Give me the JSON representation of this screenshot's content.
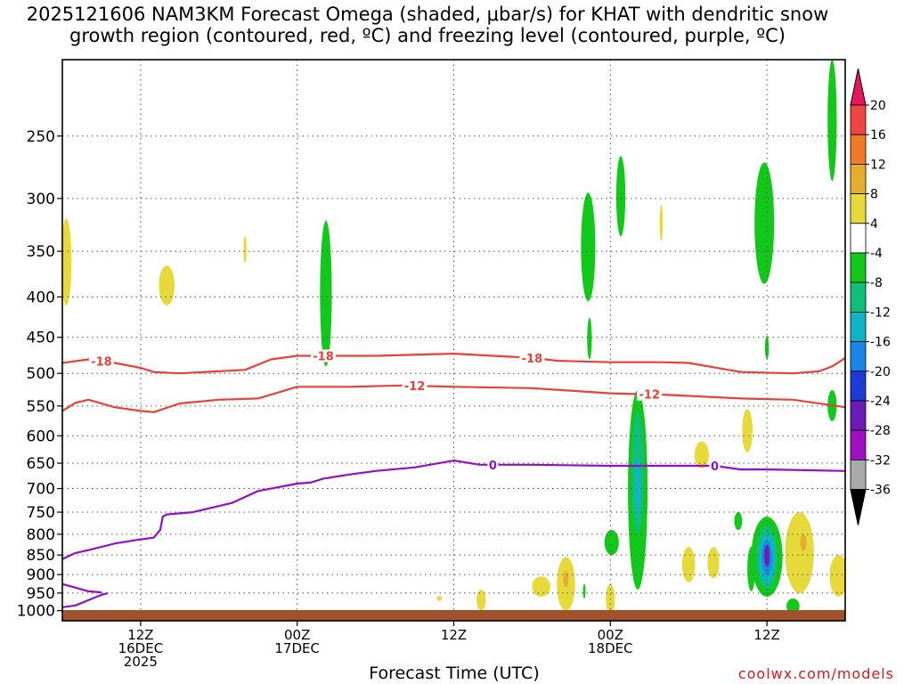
{
  "title_line1": "2025121606 NAM3KM Forecast Omega (shaded, μbar/s) for KHAT with dendritic snow",
  "title_line2": "growth region (contoured, red, ºC) and freezing level (contoured, purple, ºC)",
  "credit": "coolwx.com/models",
  "chart_data": {
    "type": "time-height cross-section",
    "xlabel": "Forecast Time (UTC)",
    "ylabel": "",
    "x_range_hours": [
      6,
      66
    ],
    "y_range_hPa": [
      200,
      1030
    ],
    "y_scale": "log-pressure",
    "grid": "dotted",
    "y_ticks": [
      250,
      300,
      350,
      400,
      450,
      500,
      550,
      600,
      650,
      700,
      750,
      800,
      850,
      900,
      950,
      1000
    ],
    "x_ticks": [
      {
        "hour": 12,
        "label1": "12Z",
        "label2": "16DEC",
        "label3": "2025"
      },
      {
        "hour": 24,
        "label1": "00Z",
        "label2": "17DEC",
        "label3": ""
      },
      {
        "hour": 36,
        "label1": "12Z",
        "label2": "",
        "label3": ""
      },
      {
        "hour": 48,
        "label1": "00Z",
        "label2": "18DEC",
        "label3": ""
      },
      {
        "hour": 60,
        "label1": "12Z",
        "label2": "",
        "label3": ""
      }
    ],
    "colorbar": {
      "labels": [
        "20",
        "16",
        "12",
        "8",
        "4",
        "-4",
        "-8",
        "-12",
        "-16",
        "-20",
        "-24",
        "-28",
        "-32",
        "-36"
      ],
      "colors": [
        "#e8175d",
        "#f04545",
        "#ee7a2a",
        "#e6ad2e",
        "#e8d93a",
        "#ffffff",
        "#12c81a",
        "#10c07a",
        "#10b4c8",
        "#1a86e8",
        "#1c3ad6",
        "#6a1ab8",
        "#a010c0",
        "#aaaaaa",
        "#000000"
      ]
    },
    "contour_series": [
      {
        "label": "-18",
        "color": "#e8403a",
        "points": [
          [
            6,
            485
          ],
          [
            8,
            480
          ],
          [
            10,
            485
          ],
          [
            12,
            492
          ],
          [
            13,
            498
          ],
          [
            15,
            500
          ],
          [
            18,
            497
          ],
          [
            20,
            495
          ],
          [
            22,
            480
          ],
          [
            24,
            475
          ],
          [
            28,
            475
          ],
          [
            30,
            475
          ],
          [
            36,
            472
          ],
          [
            42,
            478
          ],
          [
            44,
            482
          ],
          [
            48,
            484
          ],
          [
            52,
            484
          ],
          [
            54,
            485
          ],
          [
            58,
            498
          ],
          [
            62,
            500
          ],
          [
            64,
            497
          ],
          [
            65,
            490
          ],
          [
            66,
            478
          ]
        ],
        "labels_at": [
          9,
          26,
          42
        ]
      },
      {
        "label": "-12",
        "color": "#e8403a",
        "points": [
          [
            6,
            558
          ],
          [
            7,
            545
          ],
          [
            8,
            540
          ],
          [
            10,
            552
          ],
          [
            12,
            558
          ],
          [
            13,
            560
          ],
          [
            15,
            546
          ],
          [
            18,
            540
          ],
          [
            21,
            538
          ],
          [
            24,
            520
          ],
          [
            28,
            520
          ],
          [
            32,
            518
          ],
          [
            36,
            520
          ],
          [
            42,
            522
          ],
          [
            48,
            530
          ],
          [
            52,
            532
          ],
          [
            54,
            534
          ],
          [
            58,
            538
          ],
          [
            62,
            540
          ],
          [
            66,
            552
          ]
        ],
        "labels_at": [
          33,
          51
        ]
      },
      {
        "label": "0",
        "color": "#9010c8",
        "points": [
          [
            6,
            860
          ],
          [
            7,
            845
          ],
          [
            8,
            838
          ],
          [
            10,
            822
          ],
          [
            12,
            812
          ],
          [
            13,
            808
          ],
          [
            13.5,
            790
          ],
          [
            13.7,
            760
          ],
          [
            14,
            755
          ],
          [
            16,
            750
          ],
          [
            19,
            730
          ],
          [
            21,
            705
          ],
          [
            24,
            690
          ],
          [
            25,
            688
          ],
          [
            26,
            680
          ],
          [
            28,
            672
          ],
          [
            30,
            665
          ],
          [
            33,
            658
          ],
          [
            36,
            645
          ],
          [
            38,
            653
          ],
          [
            42,
            653
          ],
          [
            48,
            655
          ],
          [
            52,
            655
          ],
          [
            56,
            655
          ],
          [
            58,
            662
          ],
          [
            60,
            662
          ],
          [
            66,
            665
          ]
        ],
        "labels_at": [
          39,
          56
        ]
      },
      {
        "label": "",
        "color": "#9010c8",
        "points": [
          [
            6,
            925
          ],
          [
            7,
            935
          ],
          [
            8,
            945
          ],
          [
            9,
            948
          ]
        ]
      },
      {
        "label": "",
        "color": "#9010c8",
        "points": [
          [
            6,
            990
          ],
          [
            7,
            985
          ],
          [
            8,
            970
          ],
          [
            9,
            955
          ],
          [
            9.5,
            950
          ]
        ]
      }
    ],
    "omega_regions": [
      {
        "value": 4,
        "center": [
          6.3,
          360
        ],
        "half_width_h": 0.4,
        "p_top": 318,
        "p_bot": 410
      },
      {
        "value": 4,
        "center": [
          14.0,
          385
        ],
        "half_width_h": 0.6,
        "p_top": 365,
        "p_bot": 410
      },
      {
        "value": 4,
        "center": [
          20.0,
          347
        ],
        "half_width_h": 0.12,
        "p_top": 335,
        "p_bot": 362
      },
      {
        "value": -8,
        "center": [
          26.2,
          395
        ],
        "half_width_h": 0.45,
        "p_top": 320,
        "p_bot": 490
      },
      {
        "value": -8,
        "center": [
          46.3,
          350
        ],
        "half_width_h": 0.55,
        "p_top": 295,
        "p_bot": 405
      },
      {
        "value": -8,
        "center": [
          48.8,
          300
        ],
        "half_width_h": 0.35,
        "p_top": 265,
        "p_bot": 335
      },
      {
        "value": -8,
        "center": [
          46.4,
          452
        ],
        "half_width_h": 0.18,
        "p_top": 425,
        "p_bot": 480
      },
      {
        "value": 4,
        "center": [
          51.9,
          322
        ],
        "half_width_h": 0.12,
        "p_top": 305,
        "p_bot": 340
      },
      {
        "value": -8,
        "center": [
          59.8,
          325
        ],
        "half_width_h": 0.75,
        "p_top": 270,
        "p_bot": 385
      },
      {
        "value": -8,
        "center": [
          65.0,
          235
        ],
        "half_width_h": 0.35,
        "p_top": 200,
        "p_bot": 285
      },
      {
        "value": -8,
        "center": [
          60.0,
          465
        ],
        "half_width_h": 0.15,
        "p_top": 448,
        "p_bot": 480
      },
      {
        "value": -8,
        "center": [
          65.0,
          550
        ],
        "half_width_h": 0.35,
        "p_top": 525,
        "p_bot": 575
      },
      {
        "value": 4,
        "center": [
          58.5,
          590
        ],
        "half_width_h": 0.4,
        "p_top": 555,
        "p_bot": 630
      },
      {
        "value": 4,
        "center": [
          55.0,
          630
        ],
        "half_width_h": 0.55,
        "p_top": 610,
        "p_bot": 660
      },
      {
        "value": -8,
        "center": [
          50.1,
          720
        ],
        "half_width_h": 0.75,
        "p_top": 525,
        "p_bot": 940
      },
      {
        "value": -12,
        "center": [
          50.1,
          700
        ],
        "half_width_h": 0.45,
        "p_top": 560,
        "p_bot": 800
      },
      {
        "value": -16,
        "center": [
          50.1,
          700
        ],
        "half_width_h": 0.2,
        "p_top": 640,
        "p_bot": 760
      },
      {
        "value": -8,
        "center": [
          48.1,
          820
        ],
        "half_width_h": 0.55,
        "p_top": 790,
        "p_bot": 850
      },
      {
        "value": -8,
        "center": [
          57.8,
          770
        ],
        "half_width_h": 0.3,
        "p_top": 750,
        "p_bot": 790
      },
      {
        "value": -8,
        "center": [
          58.8,
          880
        ],
        "half_width_h": 0.3,
        "p_top": 830,
        "p_bot": 945
      },
      {
        "value": -8,
        "center": [
          60.0,
          860
        ],
        "half_width_h": 1.2,
        "p_top": 760,
        "p_bot": 960
      },
      {
        "value": -12,
        "center": [
          60.0,
          855
        ],
        "half_width_h": 0.8,
        "p_top": 780,
        "p_bot": 940
      },
      {
        "value": -16,
        "center": [
          60.0,
          850
        ],
        "half_width_h": 0.6,
        "p_top": 800,
        "p_bot": 920
      },
      {
        "value": -20,
        "center": [
          60.0,
          845
        ],
        "half_width_h": 0.4,
        "p_top": 815,
        "p_bot": 900
      },
      {
        "value": -28,
        "center": [
          60.0,
          840
        ],
        "half_width_h": 0.2,
        "p_top": 825,
        "p_bot": 880
      },
      {
        "value": -8,
        "center": [
          62.0,
          990
        ],
        "half_width_h": 0.5,
        "p_top": 965,
        "p_bot": 1010
      },
      {
        "value": 4,
        "center": [
          62.5,
          820
        ],
        "half_width_h": 1.1,
        "p_top": 750,
        "p_bot": 950
      },
      {
        "value": 8,
        "center": [
          62.8,
          820
        ],
        "half_width_h": 0.25,
        "p_top": 800,
        "p_bot": 840
      },
      {
        "value": 4,
        "center": [
          55.9,
          870
        ],
        "half_width_h": 0.45,
        "p_top": 830,
        "p_bot": 910
      },
      {
        "value": 4,
        "center": [
          54.0,
          875
        ],
        "half_width_h": 0.5,
        "p_top": 830,
        "p_bot": 920
      },
      {
        "value": 4,
        "center": [
          65.5,
          910
        ],
        "half_width_h": 0.7,
        "p_top": 850,
        "p_bot": 960
      },
      {
        "value": 4,
        "center": [
          44.6,
          930
        ],
        "half_width_h": 0.7,
        "p_top": 855,
        "p_bot": 1000
      },
      {
        "value": 8,
        "center": [
          44.6,
          910
        ],
        "half_width_h": 0.2,
        "p_top": 890,
        "p_bot": 935
      },
      {
        "value": 4,
        "center": [
          42.7,
          935
        ],
        "half_width_h": 0.7,
        "p_top": 905,
        "p_bot": 960
      },
      {
        "value": 4,
        "center": [
          38.1,
          970
        ],
        "half_width_h": 0.35,
        "p_top": 940,
        "p_bot": 1000
      },
      {
        "value": 4,
        "center": [
          48.0,
          970
        ],
        "half_width_h": 0.35,
        "p_top": 925,
        "p_bot": 1010
      },
      {
        "value": 4,
        "center": [
          34.9,
          965
        ],
        "half_width_h": 0.2,
        "p_top": 958,
        "p_bot": 972
      },
      {
        "value": -8,
        "center": [
          46.0,
          945
        ],
        "half_width_h": 0.08,
        "p_top": 925,
        "p_bot": 965
      }
    ],
    "ground_color": "#a0522d"
  }
}
